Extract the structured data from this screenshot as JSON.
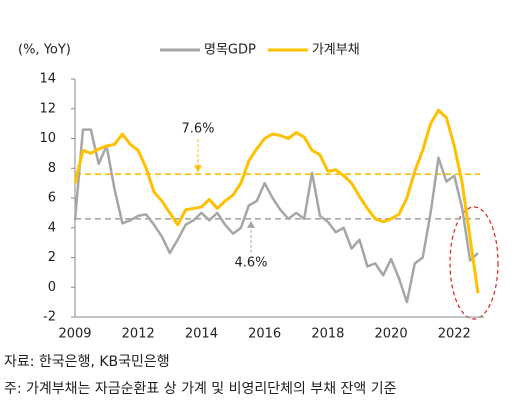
{
  "chart_data": {
    "type": "line",
    "y_axis_label": "(%, YoY)",
    "categories": [
      "2009",
      null,
      null,
      null,
      null,
      null,
      null,
      null,
      "2012",
      null,
      null,
      null,
      null,
      null,
      null,
      null,
      "2014",
      null,
      null,
      null,
      null,
      null,
      null,
      null,
      "2016",
      null,
      null,
      null,
      null,
      null,
      null,
      null,
      "2018",
      null,
      null,
      null,
      null,
      null,
      null,
      null,
      "2020",
      null,
      null,
      null,
      null,
      null,
      null,
      null,
      "2022",
      null,
      null,
      null
    ],
    "series": [
      {
        "name": "명목GDP",
        "color": "#a6a6a6",
        "values": [
          4.5,
          10.6,
          10.6,
          8.3,
          9.5,
          6.6,
          4.3,
          4.5,
          4.8,
          4.9,
          4.2,
          3.4,
          2.3,
          3.2,
          4.2,
          4.5,
          5.0,
          4.5,
          5.0,
          4.2,
          3.6,
          4.0,
          5.5,
          5.8,
          7.0,
          6.0,
          5.2,
          4.6,
          5.0,
          4.6,
          7.7,
          4.8,
          4.4,
          3.7,
          4.0,
          2.6,
          3.2,
          1.4,
          1.6,
          0.8,
          1.9,
          0.6,
          -1.0,
          1.6,
          2.0,
          5.0,
          8.7,
          7.1,
          7.5,
          5.3,
          1.8,
          2.3
        ]
      },
      {
        "name": "가계부채",
        "color": "#ffc000",
        "values": [
          7.0,
          9.2,
          9.0,
          9.3,
          9.5,
          9.6,
          10.3,
          9.6,
          9.2,
          8.0,
          6.4,
          5.8,
          5.0,
          4.2,
          5.2,
          5.3,
          5.4,
          5.9,
          5.3,
          5.8,
          6.2,
          7.0,
          8.5,
          9.3,
          10.0,
          10.3,
          10.2,
          10.0,
          10.4,
          10.1,
          9.2,
          8.9,
          7.8,
          7.9,
          7.5,
          7.0,
          6.1,
          5.3,
          4.6,
          4.4,
          4.6,
          4.9,
          6.0,
          7.8,
          9.2,
          11.0,
          11.9,
          11.4,
          9.5,
          7.0,
          3.3,
          -0.4
        ]
      }
    ],
    "reference_lines": [
      {
        "value": 7.6,
        "label": "7.6%",
        "color": "#ffc000"
      },
      {
        "value": 4.6,
        "label": "4.6%",
        "color": "#a6a6a6"
      }
    ],
    "ylim": [
      -2,
      14
    ],
    "yticks": [
      -2,
      0,
      2,
      4,
      6,
      8,
      10,
      12,
      14
    ],
    "legend": "top",
    "source": "자료: 한국은행, KB국민은행",
    "note": "주: 가계부채는 자금순환표 상 가계 및 비영리단체의 부채 잔액 기준"
  }
}
